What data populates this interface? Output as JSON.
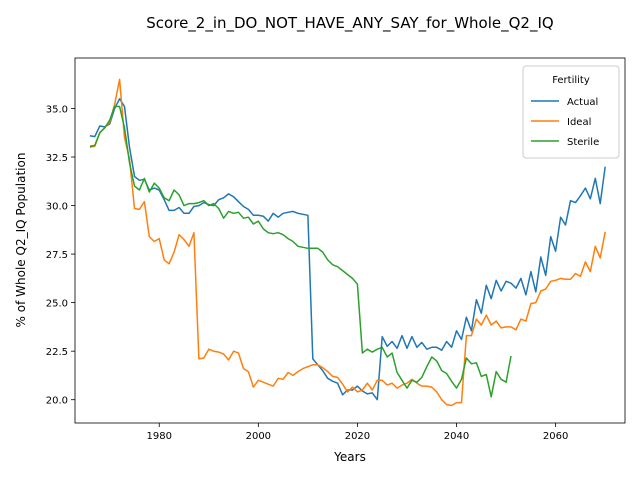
{
  "chart_data": {
    "type": "line",
    "title": "Score_2_in_DO_NOT_HAVE_ANY_SAY_for_Whole_Q2_IQ",
    "xlabel": "Years",
    "ylabel": "% of Whole Q2_IQ Population",
    "xlim": [
      1963,
      2074
    ],
    "ylim": [
      18.8,
      37.6
    ],
    "xticks": [
      1980,
      2000,
      2020,
      2040,
      2060
    ],
    "yticks": [
      20.0,
      22.5,
      25.0,
      27.5,
      30.0,
      32.5,
      35.0
    ],
    "grid": false,
    "legend": {
      "title": "Fertility",
      "placement": "top-right"
    },
    "series": [
      {
        "name": "Actual",
        "color": "#1f77b4",
        "points": [
          [
            1966,
            33.6
          ],
          [
            1967,
            33.55
          ],
          [
            1968,
            34.1
          ],
          [
            1969,
            34.05
          ],
          [
            1970,
            34.2
          ],
          [
            1971,
            35.0
          ],
          [
            1972,
            35.5
          ],
          [
            1973,
            35.1
          ],
          [
            1974,
            33.0
          ],
          [
            1975,
            31.5
          ],
          [
            1976,
            31.3
          ],
          [
            1977,
            31.35
          ],
          [
            1978,
            30.8
          ],
          [
            1979,
            30.9
          ],
          [
            1980,
            30.8
          ],
          [
            1981,
            30.3
          ],
          [
            1982,
            29.75
          ],
          [
            1983,
            29.75
          ],
          [
            1984,
            29.9
          ],
          [
            1985,
            29.6
          ],
          [
            1986,
            29.6
          ],
          [
            1987,
            29.95
          ],
          [
            1988,
            30.0
          ],
          [
            1989,
            30.15
          ],
          [
            1990,
            30.05
          ],
          [
            1991,
            30.0
          ],
          [
            1992,
            30.3
          ],
          [
            1993,
            30.4
          ],
          [
            1994,
            30.6
          ],
          [
            1995,
            30.45
          ],
          [
            1996,
            30.2
          ],
          [
            1997,
            29.95
          ],
          [
            1998,
            29.8
          ],
          [
            1999,
            29.5
          ],
          [
            2000,
            29.5
          ],
          [
            2001,
            29.45
          ],
          [
            2002,
            29.2
          ],
          [
            2003,
            29.6
          ],
          [
            2004,
            29.4
          ],
          [
            2005,
            29.6
          ],
          [
            2006,
            29.65
          ],
          [
            2007,
            29.7
          ],
          [
            2008,
            29.6
          ],
          [
            2009,
            29.55
          ],
          [
            2010,
            29.5
          ],
          [
            2011,
            22.1
          ],
          [
            2012,
            21.8
          ],
          [
            2013,
            21.5
          ],
          [
            2014,
            21.1
          ],
          [
            2015,
            20.95
          ],
          [
            2016,
            20.85
          ],
          [
            2017,
            20.25
          ],
          [
            2018,
            20.5
          ],
          [
            2019,
            20.5
          ],
          [
            2020,
            20.7
          ],
          [
            2021,
            20.45
          ],
          [
            2022,
            20.3
          ],
          [
            2023,
            20.35
          ],
          [
            2024,
            20.0
          ],
          [
            2025,
            23.25
          ],
          [
            2026,
            22.75
          ],
          [
            2027,
            23.0
          ],
          [
            2028,
            22.65
          ],
          [
            2029,
            23.3
          ],
          [
            2030,
            22.65
          ],
          [
            2031,
            23.25
          ],
          [
            2032,
            22.7
          ],
          [
            2033,
            22.95
          ],
          [
            2034,
            22.6
          ],
          [
            2035,
            22.7
          ],
          [
            2036,
            22.7
          ],
          [
            2037,
            22.55
          ],
          [
            2038,
            23.0
          ],
          [
            2039,
            22.7
          ],
          [
            2040,
            23.55
          ],
          [
            2041,
            23.1
          ],
          [
            2042,
            24.25
          ],
          [
            2043,
            23.55
          ],
          [
            2044,
            25.15
          ],
          [
            2045,
            24.45
          ],
          [
            2046,
            25.9
          ],
          [
            2047,
            25.2
          ],
          [
            2048,
            26.15
          ],
          [
            2049,
            25.6
          ],
          [
            2050,
            26.1
          ],
          [
            2051,
            26.0
          ],
          [
            2052,
            25.75
          ],
          [
            2053,
            26.25
          ],
          [
            2054,
            25.4
          ],
          [
            2055,
            26.6
          ],
          [
            2056,
            25.55
          ],
          [
            2057,
            27.35
          ],
          [
            2058,
            26.4
          ],
          [
            2059,
            28.4
          ],
          [
            2060,
            27.65
          ],
          [
            2061,
            29.4
          ],
          [
            2062,
            29.0
          ],
          [
            2063,
            30.25
          ],
          [
            2064,
            30.15
          ],
          [
            2065,
            30.5
          ],
          [
            2066,
            30.9
          ],
          [
            2067,
            30.35
          ],
          [
            2068,
            31.4
          ],
          [
            2069,
            30.1
          ],
          [
            2070,
            32.0
          ]
        ]
      },
      {
        "name": "Ideal",
        "color": "#ff7f0e",
        "points": [
          [
            1966,
            33.0
          ],
          [
            1967,
            33.05
          ],
          [
            1968,
            33.75
          ],
          [
            1969,
            34.0
          ],
          [
            1970,
            34.3
          ],
          [
            1971,
            35.2
          ],
          [
            1972,
            36.5
          ],
          [
            1973,
            33.5
          ],
          [
            1974,
            32.4
          ],
          [
            1975,
            29.85
          ],
          [
            1976,
            29.8
          ],
          [
            1977,
            30.2
          ],
          [
            1978,
            28.4
          ],
          [
            1979,
            28.15
          ],
          [
            1980,
            28.3
          ],
          [
            1981,
            27.2
          ],
          [
            1982,
            27.0
          ],
          [
            1983,
            27.6
          ],
          [
            1984,
            28.5
          ],
          [
            1985,
            28.25
          ],
          [
            1986,
            27.9
          ],
          [
            1987,
            28.6
          ],
          [
            1988,
            22.1
          ],
          [
            1989,
            22.15
          ],
          [
            1990,
            22.6
          ],
          [
            1991,
            22.5
          ],
          [
            1992,
            22.45
          ],
          [
            1993,
            22.35
          ],
          [
            1994,
            22.05
          ],
          [
            1995,
            22.5
          ],
          [
            1996,
            22.4
          ],
          [
            1997,
            21.6
          ],
          [
            1998,
            21.45
          ],
          [
            1999,
            20.65
          ],
          [
            2000,
            21.0
          ],
          [
            2001,
            20.9
          ],
          [
            2002,
            20.8
          ],
          [
            2003,
            20.7
          ],
          [
            2004,
            21.1
          ],
          [
            2005,
            21.05
          ],
          [
            2006,
            21.4
          ],
          [
            2007,
            21.25
          ],
          [
            2008,
            21.45
          ],
          [
            2009,
            21.6
          ],
          [
            2010,
            21.7
          ],
          [
            2011,
            21.8
          ],
          [
            2012,
            21.8
          ],
          [
            2013,
            21.65
          ],
          [
            2014,
            21.45
          ],
          [
            2015,
            21.2
          ],
          [
            2016,
            21.15
          ],
          [
            2017,
            20.8
          ],
          [
            2018,
            20.4
          ],
          [
            2019,
            20.65
          ],
          [
            2020,
            20.4
          ],
          [
            2021,
            20.5
          ],
          [
            2022,
            20.85
          ],
          [
            2023,
            20.5
          ],
          [
            2024,
            21.0
          ],
          [
            2025,
            21.0
          ],
          [
            2026,
            20.75
          ],
          [
            2027,
            20.85
          ],
          [
            2028,
            20.6
          ],
          [
            2029,
            20.75
          ],
          [
            2030,
            20.85
          ],
          [
            2031,
            21.05
          ],
          [
            2032,
            20.85
          ],
          [
            2033,
            20.7
          ],
          [
            2034,
            20.7
          ],
          [
            2035,
            20.65
          ],
          [
            2036,
            20.4
          ],
          [
            2037,
            20.0
          ],
          [
            2038,
            19.75
          ],
          [
            2039,
            19.7
          ],
          [
            2040,
            19.85
          ],
          [
            2041,
            19.85
          ],
          [
            2042,
            23.3
          ],
          [
            2043,
            23.3
          ],
          [
            2044,
            24.15
          ],
          [
            2045,
            23.85
          ],
          [
            2046,
            24.35
          ],
          [
            2047,
            23.85
          ],
          [
            2048,
            24.05
          ],
          [
            2049,
            23.7
          ],
          [
            2050,
            23.75
          ],
          [
            2051,
            23.75
          ],
          [
            2052,
            23.6
          ],
          [
            2053,
            24.15
          ],
          [
            2054,
            24.05
          ],
          [
            2055,
            24.95
          ],
          [
            2056,
            25.0
          ],
          [
            2057,
            25.6
          ],
          [
            2058,
            25.7
          ],
          [
            2059,
            26.1
          ],
          [
            2060,
            26.15
          ],
          [
            2061,
            26.25
          ],
          [
            2062,
            26.2
          ],
          [
            2063,
            26.2
          ],
          [
            2064,
            26.5
          ],
          [
            2065,
            26.35
          ],
          [
            2066,
            27.1
          ],
          [
            2067,
            26.6
          ],
          [
            2068,
            27.9
          ],
          [
            2069,
            27.3
          ],
          [
            2070,
            28.65
          ]
        ]
      },
      {
        "name": "Sterile",
        "color": "#2ca02c",
        "points": [
          [
            1966,
            33.05
          ],
          [
            1967,
            33.1
          ],
          [
            1968,
            33.75
          ],
          [
            1969,
            34.0
          ],
          [
            1970,
            34.4
          ],
          [
            1971,
            35.1
          ],
          [
            1972,
            35.1
          ],
          [
            1973,
            34.0
          ],
          [
            1974,
            32.2
          ],
          [
            1975,
            31.0
          ],
          [
            1976,
            30.8
          ],
          [
            1977,
            31.4
          ],
          [
            1978,
            30.7
          ],
          [
            1979,
            31.15
          ],
          [
            1980,
            30.9
          ],
          [
            1981,
            30.4
          ],
          [
            1982,
            30.25
          ],
          [
            1983,
            30.8
          ],
          [
            1984,
            30.55
          ],
          [
            1985,
            30.0
          ],
          [
            1986,
            30.1
          ],
          [
            1987,
            30.1
          ],
          [
            1988,
            30.15
          ],
          [
            1989,
            30.25
          ],
          [
            1990,
            30.0
          ],
          [
            1991,
            30.1
          ],
          [
            1992,
            29.85
          ],
          [
            1993,
            29.35
          ],
          [
            1994,
            29.7
          ],
          [
            1995,
            29.6
          ],
          [
            1996,
            29.65
          ],
          [
            1997,
            29.35
          ],
          [
            1998,
            29.4
          ],
          [
            1999,
            29.05
          ],
          [
            2000,
            29.2
          ],
          [
            2001,
            28.8
          ],
          [
            2002,
            28.6
          ],
          [
            2003,
            28.55
          ],
          [
            2004,
            28.6
          ],
          [
            2005,
            28.5
          ],
          [
            2006,
            28.3
          ],
          [
            2007,
            28.15
          ],
          [
            2008,
            27.9
          ],
          [
            2009,
            27.85
          ],
          [
            2010,
            27.8
          ],
          [
            2011,
            27.8
          ],
          [
            2012,
            27.8
          ],
          [
            2013,
            27.6
          ],
          [
            2014,
            27.2
          ],
          [
            2015,
            26.95
          ],
          [
            2016,
            26.85
          ],
          [
            2017,
            26.65
          ],
          [
            2018,
            26.45
          ],
          [
            2019,
            26.25
          ],
          [
            2020,
            25.95
          ],
          [
            2021,
            22.4
          ],
          [
            2022,
            22.6
          ],
          [
            2023,
            22.45
          ],
          [
            2024,
            22.6
          ],
          [
            2025,
            22.7
          ],
          [
            2026,
            22.2
          ],
          [
            2027,
            22.4
          ],
          [
            2028,
            21.4
          ],
          [
            2029,
            21.0
          ],
          [
            2030,
            20.6
          ],
          [
            2031,
            21.0
          ],
          [
            2032,
            20.9
          ],
          [
            2033,
            21.15
          ],
          [
            2034,
            21.7
          ],
          [
            2035,
            22.2
          ],
          [
            2036,
            22.0
          ],
          [
            2037,
            21.5
          ],
          [
            2038,
            21.35
          ],
          [
            2039,
            20.95
          ],
          [
            2040,
            20.6
          ],
          [
            2041,
            21.05
          ],
          [
            2042,
            22.15
          ],
          [
            2043,
            21.85
          ],
          [
            2044,
            21.9
          ],
          [
            2045,
            21.2
          ],
          [
            2046,
            21.3
          ],
          [
            2047,
            20.15
          ],
          [
            2048,
            21.45
          ],
          [
            2049,
            21.05
          ],
          [
            2050,
            20.9
          ],
          [
            2051,
            22.25
          ]
        ]
      }
    ]
  }
}
